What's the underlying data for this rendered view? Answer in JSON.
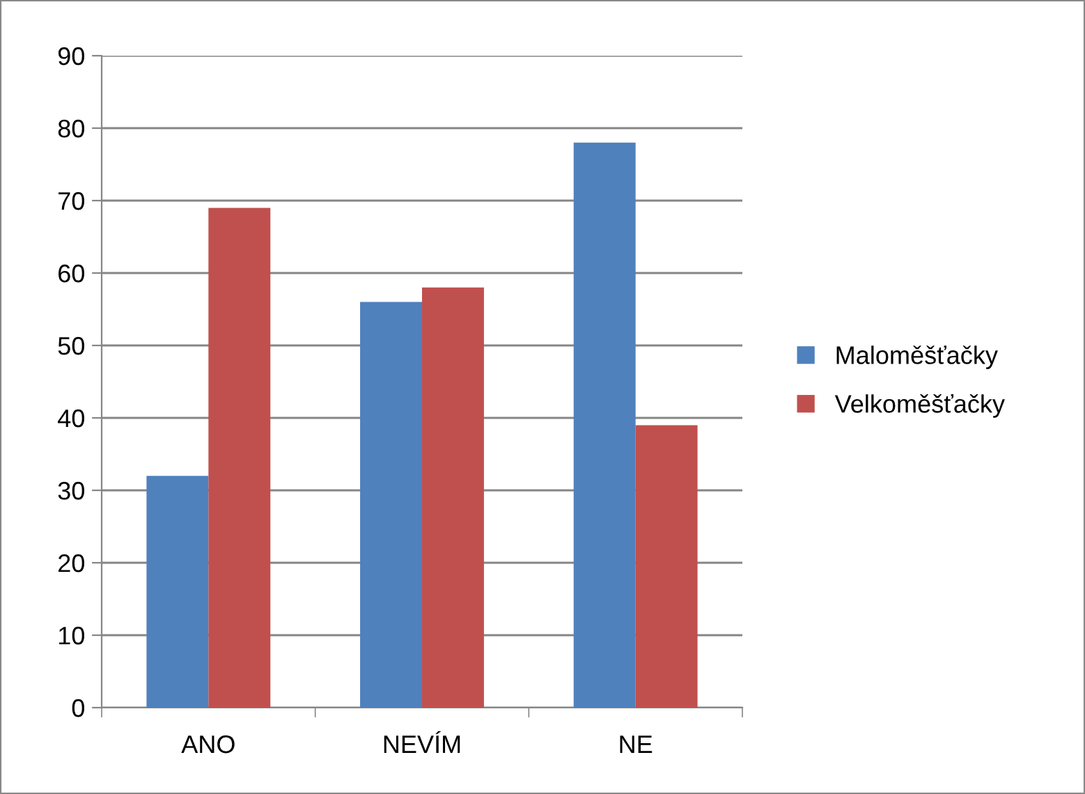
{
  "chart_data": {
    "type": "bar",
    "categories": [
      "ANO",
      "NEVÍM",
      "NE"
    ],
    "series": [
      {
        "name": "Maloměšťačky",
        "color": "#4f81bd",
        "values": [
          32,
          56,
          78
        ]
      },
      {
        "name": "Velkoměšťačky",
        "color": "#c0504d",
        "values": [
          69,
          58,
          39
        ]
      }
    ],
    "ylim": [
      0,
      90
    ],
    "yticks": [
      0,
      10,
      20,
      30,
      40,
      50,
      60,
      70,
      80,
      90
    ],
    "grid": "y",
    "legend": "right"
  }
}
